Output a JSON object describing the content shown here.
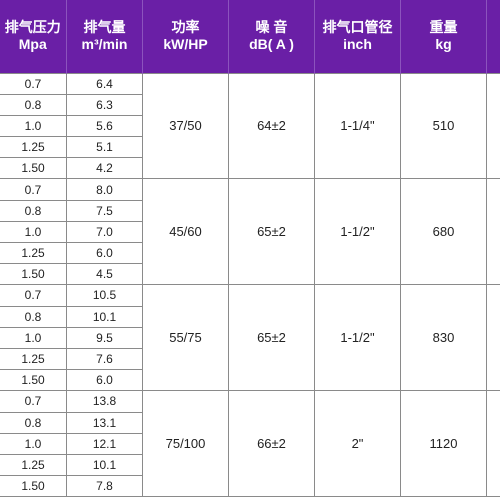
{
  "colors": {
    "header_bg": "#6a1fa6",
    "header_text": "#ffffff",
    "grid": "#8a8a8a"
  },
  "headers": [
    {
      "line1": "排气压力",
      "line2": "Mpa"
    },
    {
      "line1": "排气量",
      "line2": "m³/min"
    },
    {
      "line1": "功率",
      "line2": "kW/HP"
    },
    {
      "line1": "噪 音",
      "line2": "dB( A )"
    },
    {
      "line1": "排气口管径",
      "line2": "inch"
    },
    {
      "line1": "重量",
      "line2": "kg"
    },
    {
      "line1": "",
      "line2": ""
    }
  ],
  "groups": [
    {
      "power": "37/50",
      "noise": "64±2",
      "outlet": "1-1/4\"",
      "weight": "510",
      "rows": [
        {
          "pressure": "0.7",
          "flow": "6.4"
        },
        {
          "pressure": "0.8",
          "flow": "6.3"
        },
        {
          "pressure": "1.0",
          "flow": "5.6"
        },
        {
          "pressure": "1.25",
          "flow": "5.1"
        },
        {
          "pressure": "1.50",
          "flow": "4.2"
        }
      ]
    },
    {
      "power": "45/60",
      "noise": "65±2",
      "outlet": "1-1/2\"",
      "weight": "680",
      "rows": [
        {
          "pressure": "0.7",
          "flow": "8.0"
        },
        {
          "pressure": "0.8",
          "flow": "7.5"
        },
        {
          "pressure": "1.0",
          "flow": "7.0"
        },
        {
          "pressure": "1.25",
          "flow": "6.0"
        },
        {
          "pressure": "1.50",
          "flow": "4.5"
        }
      ]
    },
    {
      "power": "55/75",
      "noise": "65±2",
      "outlet": "1-1/2\"",
      "weight": "830",
      "rows": [
        {
          "pressure": "0.7",
          "flow": "10.5"
        },
        {
          "pressure": "0.8",
          "flow": "10.1"
        },
        {
          "pressure": "1.0",
          "flow": "9.5"
        },
        {
          "pressure": "1.25",
          "flow": "7.6"
        },
        {
          "pressure": "1.50",
          "flow": "6.0"
        }
      ]
    },
    {
      "power": "75/100",
      "noise": "66±2",
      "outlet": "2\"",
      "weight": "1120",
      "rows": [
        {
          "pressure": "0.7",
          "flow": "13.8"
        },
        {
          "pressure": "0.8",
          "flow": "13.1"
        },
        {
          "pressure": "1.0",
          "flow": "12.1"
        },
        {
          "pressure": "1.25",
          "flow": "10.1"
        },
        {
          "pressure": "1.50",
          "flow": "7.8"
        }
      ]
    }
  ]
}
